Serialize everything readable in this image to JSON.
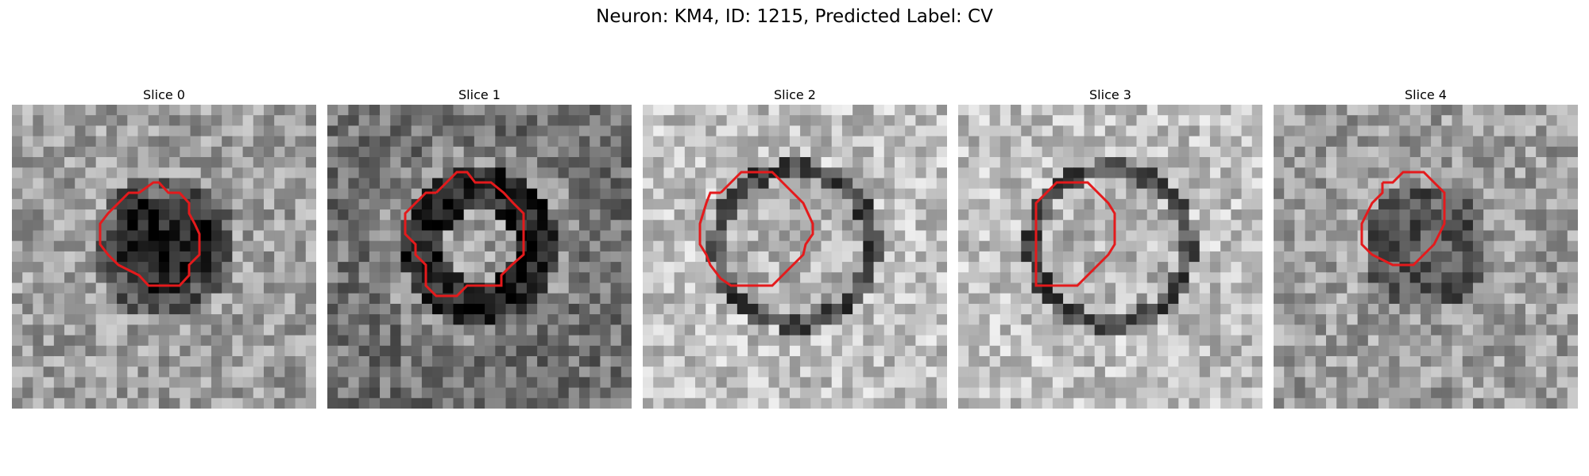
{
  "figure": {
    "title": "Neuron: KM4, ID: 1215, Predicted Label: CV",
    "overlay_color": "#e41a1c",
    "panels": [
      {
        "title": "Slice 0",
        "dark_core": "solid"
      },
      {
        "title": "Slice 1",
        "dark_core": "ring"
      },
      {
        "title": "Slice 2",
        "dark_core": "thin-ring"
      },
      {
        "title": "Slice 3",
        "dark_core": "thin-ring"
      },
      {
        "title": "Slice 4",
        "dark_core": "patchy"
      }
    ]
  }
}
